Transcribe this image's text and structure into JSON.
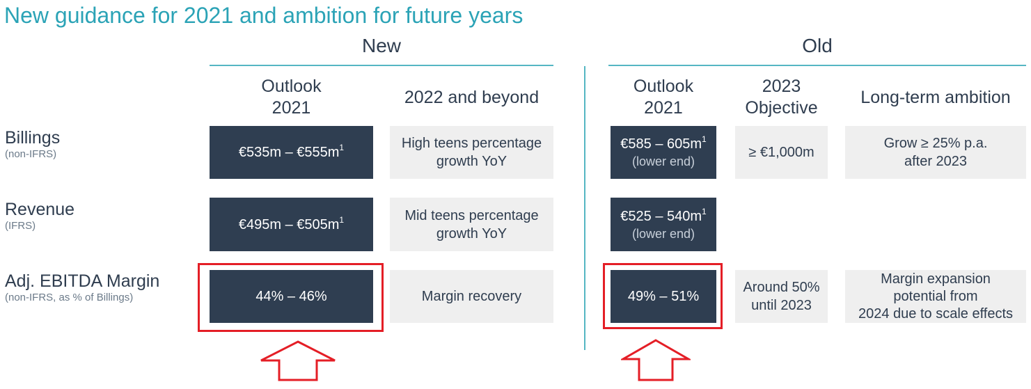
{
  "page": {
    "title": "New guidance for 2021 and ambition for future years"
  },
  "groups": {
    "new": "New",
    "old": "Old"
  },
  "columns": {
    "new_outlook_line1": "Outlook",
    "new_outlook_line2": "2021",
    "new_beyond": "2022 and beyond",
    "old_outlook_line1": "Outlook",
    "old_outlook_line2": "2021",
    "old_objective_line1": "2023",
    "old_objective_line2": "Objective",
    "old_longterm": "Long-term ambition"
  },
  "rows": {
    "billings": {
      "label": "Billings",
      "sublabel": "(non-IFRS)",
      "new_outlook": "€535m – €555m",
      "new_outlook_sup": "1",
      "new_beyond_line1": "High teens percentage",
      "new_beyond_line2": "growth YoY",
      "old_outlook": "€585 – 605m",
      "old_outlook_sup": "1",
      "old_outlook_note": "(lower end)",
      "old_objective": "≥ €1,000m",
      "old_longterm_line1": "Grow ≥ 25% p.a.",
      "old_longterm_line2": "after 2023"
    },
    "revenue": {
      "label": "Revenue",
      "sublabel": "(IFRS)",
      "new_outlook": "€495m – €505m",
      "new_outlook_sup": "1",
      "new_beyond_line1": "Mid teens percentage",
      "new_beyond_line2": "growth YoY",
      "old_outlook": "€525 – 540m",
      "old_outlook_sup": "1",
      "old_outlook_note": "(lower end)"
    },
    "ebitda": {
      "label": "Adj. EBITDA Margin",
      "sublabel": "(non-IFRS, as % of Billings)",
      "new_outlook": "44% – 46%",
      "new_beyond": "Margin recovery",
      "old_outlook": "49% – 51%",
      "old_objective_line1": "Around 50%",
      "old_objective_line2": "until 2023",
      "old_longterm_line1": "Margin expansion",
      "old_longterm_line2": "potential from",
      "old_longterm_line3": "2024 due to scale effects"
    }
  },
  "colors": {
    "accent": "#2ba3b6",
    "dark_cell": "#2f3e51",
    "light_cell": "#efefef",
    "highlight": "#e41e26"
  },
  "icons": {
    "arrow": "arrow-up-outline-icon"
  }
}
